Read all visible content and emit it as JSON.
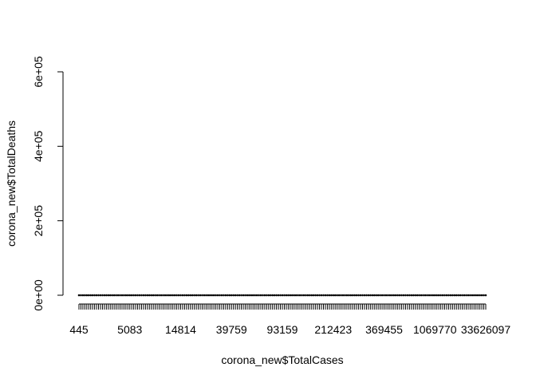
{
  "chart_data": {
    "type": "scatter",
    "xlabel": "corona_new$TotalCases",
    "ylabel": "corona_new$TotalDeaths",
    "x_tick_labels": [
      "445",
      "5083",
      "14814",
      "39759",
      "93159",
      "212423",
      "369455",
      "1069770",
      "33626097"
    ],
    "y_ticks": [
      0,
      200000,
      400000,
      600000
    ],
    "y_tick_labels": [
      "0e+00",
      "2e+05",
      "4e+05",
      "6e+05"
    ],
    "ylim": [
      0,
      600000
    ],
    "category_count": 209,
    "values": [
      0,
      0,
      0,
      0,
      0,
      0,
      0,
      0,
      0,
      0,
      0,
      0,
      0,
      0,
      0,
      0,
      0,
      0,
      0,
      0,
      0,
      0,
      0,
      0,
      0,
      0,
      0,
      0,
      0,
      0,
      0,
      0,
      0,
      0,
      0,
      0,
      0,
      0,
      0,
      0,
      0,
      0,
      0,
      0,
      0,
      0,
      0,
      0,
      0,
      0,
      0,
      0,
      0,
      0,
      0,
      0,
      0,
      0,
      0,
      0,
      0,
      0,
      0,
      0,
      0,
      0,
      0,
      0,
      0,
      0,
      0,
      0,
      0,
      0,
      0,
      0,
      0,
      0,
      0,
      0,
      0,
      0,
      0,
      0,
      0,
      0,
      0,
      0,
      0,
      0,
      0,
      0,
      0,
      0,
      0,
      0,
      0,
      0,
      0,
      0,
      0,
      0,
      0,
      0,
      0,
      0,
      0,
      0,
      0,
      0,
      0,
      0,
      0,
      0,
      0,
      0,
      0,
      0,
      0,
      0,
      0,
      0,
      0,
      0,
      0,
      0,
      0,
      0,
      0,
      0,
      0,
      0,
      0,
      0,
      0,
      0,
      0,
      0,
      0,
      0,
      0,
      0,
      0,
      0,
      0,
      0,
      0,
      0,
      0,
      0,
      0,
      0,
      0,
      0,
      0,
      0,
      0,
      0,
      0,
      0,
      0,
      0,
      0,
      0,
      0,
      0,
      0,
      0,
      0,
      0,
      0,
      0,
      0,
      0,
      0,
      0,
      0,
      0,
      0,
      0,
      0,
      0,
      0,
      0,
      0,
      0,
      0,
      0,
      0,
      0,
      0,
      0,
      0,
      0,
      0,
      0,
      0,
      0,
      0,
      0,
      0,
      0,
      0,
      0,
      0,
      0,
      0,
      0,
      0
    ]
  }
}
